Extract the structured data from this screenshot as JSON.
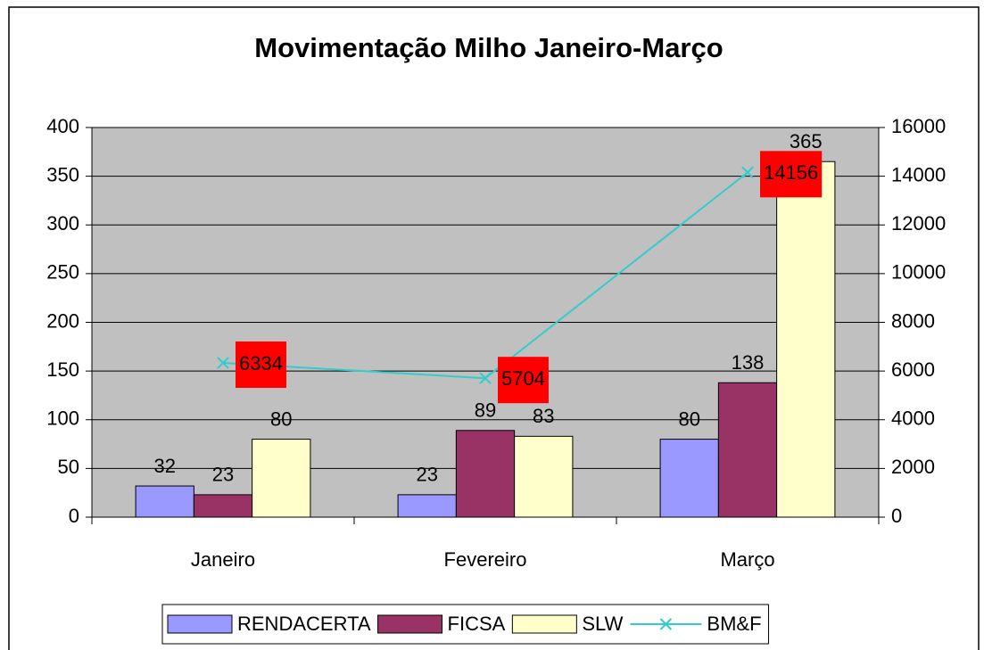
{
  "chart_data": {
    "type": "bar",
    "title": "Movimentação Milho Janeiro-Março",
    "categories": [
      "Janeiro",
      "Fevereiro",
      "Março"
    ],
    "series": [
      {
        "name": "RENDACERTA",
        "color": "#9999ff",
        "values": [
          32,
          23,
          80
        ]
      },
      {
        "name": "FICSA",
        "color": "#993366",
        "values": [
          23,
          89,
          138
        ]
      },
      {
        "name": "SLW",
        "color": "#ffffcc",
        "values": [
          80,
          83,
          365
        ]
      },
      {
        "name": "BM&F",
        "color": "#33cccc",
        "type": "line",
        "axis": "y2",
        "values": [
          6334,
          5704,
          14156
        ],
        "label_color": "#ff0000"
      }
    ],
    "ylim": [
      0,
      400
    ],
    "yticks": [
      0,
      50,
      100,
      150,
      200,
      250,
      300,
      350,
      400
    ],
    "y2lim": [
      0,
      16000
    ],
    "y2ticks": [
      0,
      2000,
      4000,
      6000,
      8000,
      10000,
      12000,
      14000,
      16000
    ],
    "grid": true,
    "legend": "bottom",
    "plot_background": "#c0c0c0"
  }
}
